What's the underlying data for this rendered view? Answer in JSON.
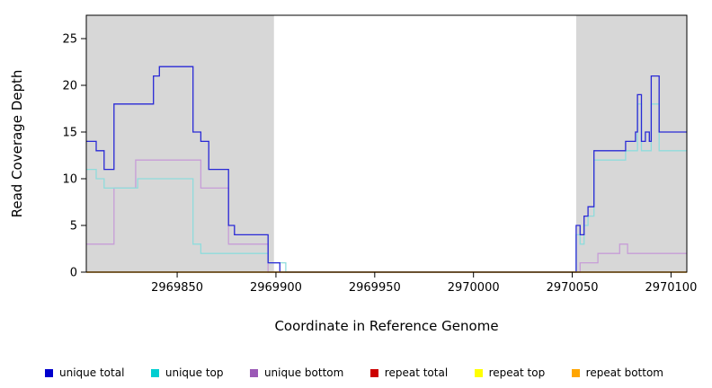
{
  "chart_data": {
    "type": "line",
    "subtype": "step-after",
    "title": "",
    "xlabel": "Coordinate in Reference Genome",
    "ylabel": "Read Coverage Depth",
    "xlim": [
      2969804,
      2970108
    ],
    "ylim": [
      0,
      27.5
    ],
    "x_ticks": [
      2969850,
      2969900,
      2969950,
      2970000,
      2970050,
      2970100
    ],
    "y_ticks": [
      0,
      5,
      10,
      15,
      20,
      25
    ],
    "grid": false,
    "shaded_regions": [
      {
        "x0": 2969804,
        "x1": 2969899,
        "color": "#d7d7d7"
      },
      {
        "x0": 2970052,
        "x1": 2970108,
        "color": "#d7d7d7"
      }
    ],
    "series": [
      {
        "name": "unique bottom",
        "color": "#c79dd7",
        "points": [
          [
            2969804,
            3
          ],
          [
            2969818,
            9
          ],
          [
            2969829,
            12
          ],
          [
            2969862,
            9
          ],
          [
            2969876,
            3
          ],
          [
            2969896,
            0
          ],
          [
            2970054,
            1
          ],
          [
            2970063,
            2
          ],
          [
            2970074,
            3
          ],
          [
            2970078,
            2
          ]
        ]
      },
      {
        "name": "unique top",
        "color": "#8fdcdc",
        "points": [
          [
            2969804,
            11
          ],
          [
            2969809,
            10
          ],
          [
            2969813,
            9
          ],
          [
            2969830,
            10
          ],
          [
            2969858,
            3
          ],
          [
            2969862,
            2
          ],
          [
            2969896,
            1
          ],
          [
            2969905,
            0
          ],
          [
            2970052,
            4
          ],
          [
            2970054,
            3
          ],
          [
            2970056,
            5
          ],
          [
            2970058,
            6
          ],
          [
            2970061,
            12
          ],
          [
            2970077,
            13
          ],
          [
            2970083,
            18
          ],
          [
            2970085,
            13
          ],
          [
            2970090,
            18
          ],
          [
            2970094,
            13
          ]
        ]
      },
      {
        "name": "unique total",
        "color": "#2929d6",
        "points": [
          [
            2969804,
            14
          ],
          [
            2969809,
            13
          ],
          [
            2969813,
            11
          ],
          [
            2969818,
            18
          ],
          [
            2969838,
            21
          ],
          [
            2969841,
            22
          ],
          [
            2969858,
            15
          ],
          [
            2969862,
            14
          ],
          [
            2969866,
            11
          ],
          [
            2969876,
            5
          ],
          [
            2969879,
            4
          ],
          [
            2969896,
            1
          ],
          [
            2969902,
            0
          ],
          [
            2970052,
            5
          ],
          [
            2970054,
            4
          ],
          [
            2970056,
            6
          ],
          [
            2970058,
            7
          ],
          [
            2970061,
            13
          ],
          [
            2970077,
            14
          ],
          [
            2970082,
            15
          ],
          [
            2970083,
            19
          ],
          [
            2970085,
            14
          ],
          [
            2970087,
            15
          ],
          [
            2970089,
            14
          ],
          [
            2970090,
            21
          ],
          [
            2970094,
            15
          ]
        ]
      },
      {
        "name": "repeat total",
        "color": "#cc0000",
        "points": [
          [
            2969804,
            0
          ]
        ]
      },
      {
        "name": "repeat top",
        "color": "#ffff00",
        "points": [
          [
            2969804,
            0
          ]
        ]
      },
      {
        "name": "repeat bottom",
        "color": "#ff9a00",
        "points": [
          [
            2969804,
            0
          ]
        ]
      }
    ],
    "legend": [
      {
        "label": "unique total",
        "color": "#0000cd"
      },
      {
        "label": "unique top",
        "color": "#00ced1"
      },
      {
        "label": "unique bottom",
        "color": "#9b59b6"
      },
      {
        "label": "repeat total",
        "color": "#cc0000"
      },
      {
        "label": "repeat top",
        "color": "#ffff00"
      },
      {
        "label": "repeat bottom",
        "color": "#ffa500"
      }
    ],
    "legend_position": "bottom"
  }
}
